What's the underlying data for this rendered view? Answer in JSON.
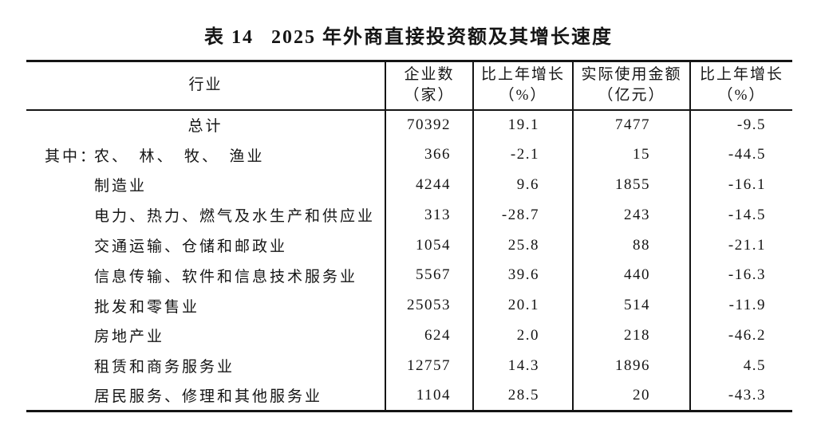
{
  "colors": {
    "background": "#ffffff",
    "text": "#151515",
    "border": "#151515"
  },
  "caption": {
    "label": "表 14",
    "title": "2025 年外商直接投资额及其增长速度"
  },
  "table": {
    "columns": [
      {
        "line1": "行业",
        "line2": ""
      },
      {
        "line1": "企业数",
        "line2": "（家）"
      },
      {
        "line1": "比上年增长",
        "line2": "（%）"
      },
      {
        "line1": "实际使用金额",
        "line2": "（亿元）"
      },
      {
        "line1": "比上年增长",
        "line2": "（%）"
      }
    ],
    "rows": [
      {
        "prefix": "",
        "industry": "总计",
        "center": true,
        "values": [
          "70392",
          "19.1",
          "7477",
          "-9.5"
        ]
      },
      {
        "prefix": "其中：",
        "industry": "农、　林、　牧、　渔业",
        "center": false,
        "values": [
          "366",
          "-2.1",
          "15",
          "-44.5"
        ]
      },
      {
        "prefix": "",
        "industry": "制造业",
        "center": false,
        "values": [
          "4244",
          "9.6",
          "1855",
          "-16.1"
        ]
      },
      {
        "prefix": "",
        "industry": "电力、热力、燃气及水生产和供应业",
        "center": false,
        "values": [
          "313",
          "-28.7",
          "243",
          "-14.5"
        ]
      },
      {
        "prefix": "",
        "industry": "交通运输、仓储和邮政业",
        "center": false,
        "values": [
          "1054",
          "25.8",
          "88",
          "-21.1"
        ]
      },
      {
        "prefix": "",
        "industry": "信息传输、软件和信息技术服务业",
        "center": false,
        "values": [
          "5567",
          "39.6",
          "440",
          "-16.3"
        ]
      },
      {
        "prefix": "",
        "industry": "批发和零售业",
        "center": false,
        "values": [
          "25053",
          "20.1",
          "514",
          "-11.9"
        ]
      },
      {
        "prefix": "",
        "industry": "房地产业",
        "center": false,
        "values": [
          "624",
          "2.0",
          "218",
          "-46.2"
        ]
      },
      {
        "prefix": "",
        "industry": "租赁和商务服务业",
        "center": false,
        "values": [
          "12757",
          "14.3",
          "1896",
          "4.5"
        ]
      },
      {
        "prefix": "",
        "industry": "居民服务、修理和其他服务业",
        "center": false,
        "values": [
          "1104",
          "28.5",
          "20",
          "-43.3"
        ]
      }
    ]
  }
}
